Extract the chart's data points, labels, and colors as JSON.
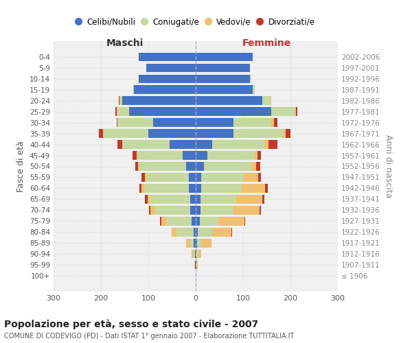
{
  "age_groups": [
    "100+",
    "95-99",
    "90-94",
    "85-89",
    "80-84",
    "75-79",
    "70-74",
    "65-69",
    "60-64",
    "55-59",
    "50-54",
    "45-49",
    "40-44",
    "35-39",
    "30-34",
    "25-29",
    "20-24",
    "15-19",
    "10-14",
    "5-9",
    "0-4"
  ],
  "birth_years": [
    "≤ 1906",
    "1907-1911",
    "1912-1916",
    "1917-1921",
    "1922-1926",
    "1927-1931",
    "1932-1936",
    "1937-1941",
    "1942-1946",
    "1947-1951",
    "1952-1956",
    "1957-1961",
    "1962-1966",
    "1967-1971",
    "1972-1976",
    "1977-1981",
    "1982-1986",
    "1987-1991",
    "1992-1996",
    "1997-2001",
    "2002-2006"
  ],
  "maschi": {
    "celibi": [
      0,
      1,
      2,
      4,
      5,
      8,
      12,
      12,
      14,
      14,
      20,
      28,
      55,
      100,
      90,
      140,
      155,
      130,
      120,
      105,
      120
    ],
    "coniugati": [
      0,
      1,
      3,
      8,
      35,
      55,
      75,
      85,
      95,
      90,
      100,
      95,
      100,
      95,
      75,
      25,
      5,
      2,
      0,
      0,
      0
    ],
    "vedovi": [
      0,
      1,
      3,
      8,
      10,
      10,
      8,
      5,
      5,
      3,
      2,
      2,
      0,
      0,
      0,
      2,
      1,
      0,
      0,
      0,
      0
    ],
    "divorziati": [
      0,
      0,
      0,
      0,
      0,
      2,
      3,
      5,
      5,
      8,
      5,
      8,
      10,
      10,
      2,
      2,
      1,
      0,
      0,
      0,
      0
    ]
  },
  "femmine": {
    "nubili": [
      0,
      1,
      2,
      3,
      5,
      8,
      10,
      10,
      12,
      12,
      18,
      25,
      35,
      80,
      80,
      160,
      140,
      120,
      115,
      115,
      120
    ],
    "coniugate": [
      0,
      1,
      4,
      10,
      30,
      40,
      70,
      75,
      85,
      90,
      100,
      100,
      110,
      105,
      80,
      50,
      18,
      5,
      2,
      0,
      0
    ],
    "vedove": [
      0,
      2,
      5,
      20,
      40,
      55,
      55,
      55,
      50,
      30,
      10,
      5,
      8,
      5,
      5,
      2,
      1,
      0,
      0,
      0,
      0
    ],
    "divorziate": [
      0,
      0,
      0,
      1,
      2,
      2,
      3,
      5,
      5,
      5,
      8,
      8,
      20,
      10,
      8,
      2,
      1,
      0,
      0,
      0,
      0
    ]
  },
  "colors": {
    "celibe": "#4472C4",
    "coniugato": "#c5d9a0",
    "vedovo": "#f0c070",
    "divorziato": "#c0392b"
  },
  "title": "Popolazione per età, sesso e stato civile - 2007",
  "subtitle": "COMUNE DI CODEVIGO (PD) - Dati ISTAT 1° gennaio 2007 - Elaborazione TUTTITALIA.IT",
  "ylabel_left": "Fasce di età",
  "ylabel_right": "Anni di nascita",
  "xlabel_left": "Maschi",
  "xlabel_right": "Femmine",
  "xlim": 300,
  "bg_color": "#ffffff",
  "plot_bg_color": "#f0f0f0",
  "grid_color": "#dddddd"
}
